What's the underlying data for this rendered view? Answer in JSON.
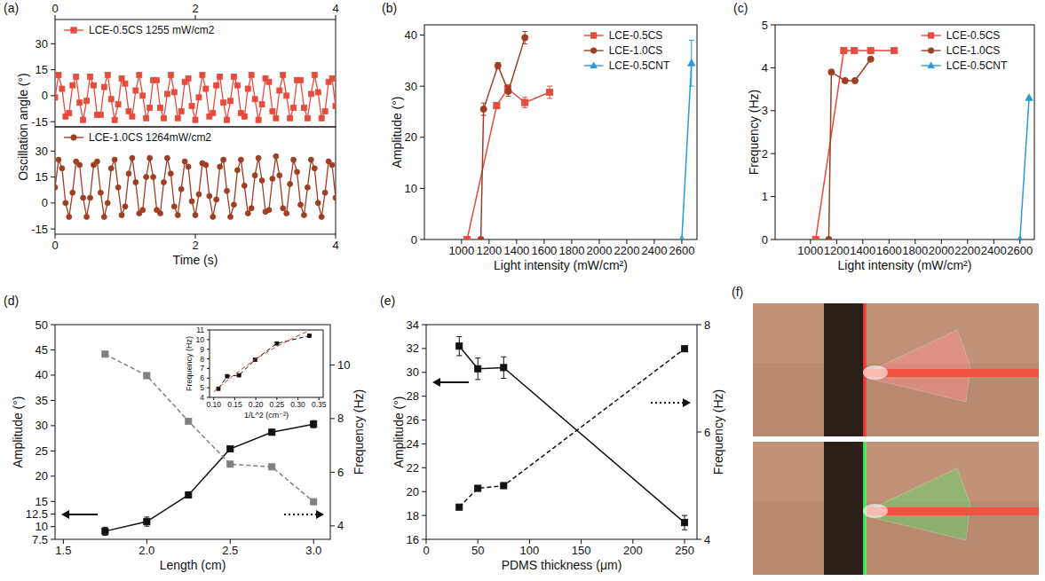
{
  "chart_data": [
    {
      "panel": "(a)",
      "type": "line",
      "xlabel": "Time (s)",
      "ylabel": "Oscillation angle (°)",
      "x": [
        0,
        0.05,
        0.1,
        0.15,
        0.2,
        0.25,
        0.3,
        0.35,
        0.4,
        0.45,
        0.5,
        0.55,
        0.6,
        0.65,
        0.7,
        0.75,
        0.8,
        0.85,
        0.9,
        0.95,
        1,
        1.05,
        1.1,
        1.15,
        1.2,
        1.25,
        1.3,
        1.35,
        1.4,
        1.45,
        1.5,
        1.55,
        1.6,
        1.65,
        1.7,
        1.75,
        1.8,
        1.85,
        1.9,
        1.95,
        2,
        2.05,
        2.1,
        2.15,
        2.2,
        2.25,
        2.3,
        2.35,
        2.4,
        2.45,
        2.5,
        2.55,
        2.6,
        2.65,
        2.7,
        2.75,
        2.8,
        2.85,
        2.9,
        2.95,
        3,
        3.05,
        3.1,
        3.15,
        3.2,
        3.25,
        3.3,
        3.35,
        3.4,
        3.45,
        3.5,
        3.55,
        3.6,
        3.65,
        3.7,
        3.75,
        3.8,
        3.85,
        3.9,
        3.95,
        4
      ],
      "xlim": [
        0,
        4
      ],
      "xticks": [
        0,
        2,
        4
      ],
      "ylim": [
        -18,
        44
      ],
      "yticks": [
        -15,
        0,
        15,
        30
      ],
      "legend": "upper left",
      "series": [
        {
          "name": "LCE-0.5CS 1255 mW/cm2",
          "color": "#e64b3c",
          "marker": "square",
          "line_style": "solid",
          "values": [
            -1,
            12,
            4,
            -12,
            -10,
            6,
            11,
            -4,
            -14,
            -3,
            11,
            6,
            -11,
            -11,
            5,
            12,
            -2,
            -14,
            -5,
            10,
            7,
            -9,
            -12,
            3,
            12,
            0,
            -13,
            -7,
            9,
            9,
            -7,
            -13,
            1,
            12,
            2,
            -13,
            -9,
            8,
            10,
            -6,
            -14,
            -1,
            12,
            4,
            -12,
            -10,
            6,
            11,
            -4,
            -14,
            -3,
            11,
            6,
            -10,
            -12,
            4,
            12,
            -2,
            -14,
            -5,
            10,
            8,
            -9,
            -13,
            3,
            12,
            0,
            -13,
            -7,
            9,
            9,
            -7,
            -13,
            1,
            12,
            2,
            -13,
            -9,
            8,
            10,
            -6
          ]
        },
        {
          "name": "LCE-1.0CS 1264mW/cm2",
          "color": "#9e3f24",
          "marker": "circle",
          "line_style": "solid",
          "values": [
            9,
            25,
            20,
            0,
            -8,
            6,
            24,
            22,
            3,
            -8,
            3,
            22,
            24,
            6,
            -8,
            0,
            20,
            25,
            9,
            -7,
            -2,
            17,
            26,
            12,
            -6,
            -4,
            15,
            26,
            15,
            -4,
            -6,
            12,
            26,
            17,
            -2,
            -7,
            8,
            24,
            21,
            1,
            -7,
            5,
            23,
            22,
            4,
            -8,
            2,
            21,
            25,
            7,
            -8,
            -1,
            19,
            25,
            10,
            -6,
            -3,
            16,
            26,
            13,
            -5,
            -4,
            14,
            27,
            16,
            -3,
            -6,
            11,
            25,
            18,
            -1,
            -7,
            9,
            25,
            20,
            0,
            -8,
            6,
            24,
            22,
            3
          ]
        }
      ]
    },
    {
      "panel": "(b)",
      "type": "line",
      "xlabel": "Light intensity (mW/cm²)",
      "ylabel": "Amplitude (°)",
      "xlim": [
        730,
        2710
      ],
      "xticks": [
        1000,
        1200,
        1400,
        1600,
        1800,
        2000,
        2200,
        2400,
        2600
      ],
      "ylim": [
        0,
        42
      ],
      "yticks": [
        0,
        10,
        20,
        30,
        40
      ],
      "legend": "upper right",
      "series": [
        {
          "name": "LCE-0.5CS",
          "color": "#e64b3c",
          "marker": "square",
          "line_style": "solid",
          "x": [
            1040,
            1255,
            1335,
            1460,
            1640
          ],
          "values": [
            0,
            26.2,
            29.5,
            26.8,
            28.8
          ],
          "errors": [
            0,
            0.5,
            0.8,
            1.0,
            1.2
          ]
        },
        {
          "name": "LCE-1.0CS",
          "color": "#9e3f24",
          "marker": "circle",
          "line_style": "solid",
          "x": [
            1140,
            1160,
            1264,
            1340,
            1460
          ],
          "values": [
            0,
            25.5,
            34,
            29,
            39.5
          ],
          "errors": [
            0,
            1.2,
            0.6,
            1.0,
            1.2
          ]
        },
        {
          "name": "LCE-0.5CNT",
          "color": "#2b9ad8",
          "marker": "triangle",
          "line_style": "solid",
          "x": [
            2600,
            2670
          ],
          "values": [
            0,
            34.5
          ],
          "errors": [
            0,
            4.5
          ]
        }
      ]
    },
    {
      "panel": "(c)",
      "type": "line",
      "xlabel": "Light intensity (mW/cm²)",
      "ylabel": "Frequency (Hz)",
      "xlim": [
        730,
        2710
      ],
      "xticks": [
        1000,
        1200,
        1400,
        1600,
        1800,
        2000,
        2200,
        2400,
        2600
      ],
      "ylim": [
        0,
        5
      ],
      "yticks": [
        0,
        1,
        2,
        3,
        4,
        5
      ],
      "legend": "upper right",
      "series": [
        {
          "name": "LCE-0.5CS",
          "color": "#e64b3c",
          "marker": "square",
          "line_style": "solid",
          "x": [
            1040,
            1255,
            1335,
            1460,
            1640
          ],
          "values": [
            0,
            4.4,
            4.4,
            4.4,
            4.4
          ]
        },
        {
          "name": "LCE-1.0CS",
          "color": "#9e3f24",
          "marker": "circle",
          "line_style": "solid",
          "x": [
            1140,
            1160,
            1264,
            1340,
            1460
          ],
          "values": [
            0,
            3.9,
            3.7,
            3.7,
            4.2
          ]
        },
        {
          "name": "LCE-0.5CNT",
          "color": "#2b9ad8",
          "marker": "triangle",
          "line_style": "solid",
          "x": [
            2600,
            2670
          ],
          "values": [
            0,
            3.3
          ]
        }
      ]
    },
    {
      "panel": "(d)",
      "type": "line",
      "xlabel": "Length (cm)",
      "ylabel": "Amplitude (°)",
      "y2label": "Frequency (Hz)",
      "x": [
        1.75,
        2,
        2.25,
        2.5,
        2.75,
        3
      ],
      "xlim": [
        1.45,
        3.1
      ],
      "xticks": [
        1.5,
        {
          "value": 2,
          "label": "2.0"
        },
        2.5,
        {
          "value": 3,
          "label": "3.0"
        }
      ],
      "ylim": [
        7.5,
        50
      ],
      "yticks": [
        7.5,
        10,
        12.5,
        15,
        20,
        25,
        30,
        35,
        40,
        45,
        50
      ],
      "y2lim": [
        3.5,
        11.5
      ],
      "y2ticks": [
        4,
        6,
        8,
        10
      ],
      "series": [
        {
          "color": "#111111",
          "marker": "square",
          "line_style": "solid",
          "values": [
            9.1,
            11,
            16.3,
            25.4,
            28.7,
            30.3
          ],
          "errors": [
            0.8,
            0.9,
            0.6,
            0.5,
            0.5,
            0.7
          ]
        },
        {
          "axis": "y2",
          "color": "#808080",
          "marker": "square",
          "line_style": "dashed",
          "values": [
            10.4,
            9.6,
            7.9,
            6.3,
            6.2,
            4.9
          ]
        }
      ],
      "inset": {
        "type": "line",
        "xlabel": "1/L^2 (cm⁻²)",
        "ylabel": "Frequency (Hz)",
        "xlim": [
          0.09,
          0.36
        ],
        "xticks": [
          {
            "value": 0.1,
            "label": "0.10"
          },
          0.15,
          {
            "value": 0.2,
            "label": "0.20"
          },
          0.25,
          {
            "value": 0.3,
            "label": "0.30"
          },
          0.35
        ],
        "ylim": [
          4,
          11
        ],
        "yticks": [
          4,
          5,
          6,
          7,
          8,
          9,
          10,
          11
        ],
        "series": [
          {
            "color": "#111111",
            "marker": "square",
            "line_style": "dashed",
            "x": [
              0.111,
              0.132,
              0.16,
              0.198,
              0.25,
              0.327
            ],
            "values": [
              4.9,
              6.2,
              6.3,
              7.9,
              9.6,
              10.4
            ]
          },
          {
            "color": "#e03030",
            "marker": "none",
            "line_style": "dashed",
            "x": [
              0.1,
              0.15,
              0.2,
              0.25,
              0.3,
              0.33
            ],
            "values": [
              4.6,
              6.4,
              8.0,
              9.3,
              10.4,
              11.0
            ]
          }
        ]
      }
    },
    {
      "panel": "(e)",
      "type": "line",
      "xlabel": "PDMS thickness (μm)",
      "ylabel": "Amplitude (°)",
      "y2label": "Frequency (Hz)",
      "x": [
        32,
        50,
        75,
        250
      ],
      "xlim": [
        0,
        262
      ],
      "xticks": [
        0,
        50,
        100,
        150,
        200,
        250
      ],
      "ylim": [
        16,
        34
      ],
      "yticks": [
        16,
        18,
        20,
        22,
        24,
        26,
        28,
        30,
        32,
        34
      ],
      "y2lim": [
        4,
        8
      ],
      "y2ticks": [
        4,
        6,
        8
      ],
      "series": [
        {
          "color": "#111111",
          "marker": "square",
          "line_style": "solid",
          "values": [
            32.2,
            30.3,
            30.4,
            17.4
          ],
          "errors": [
            0.8,
            0.9,
            0.9,
            0.6
          ]
        },
        {
          "axis": "y2",
          "color": "#111111",
          "marker": "square",
          "line_style": "dashed",
          "values": [
            4.6,
            4.95,
            5.0,
            7.55
          ]
        }
      ]
    },
    {
      "panel": "(f)",
      "type": "image"
    }
  ]
}
